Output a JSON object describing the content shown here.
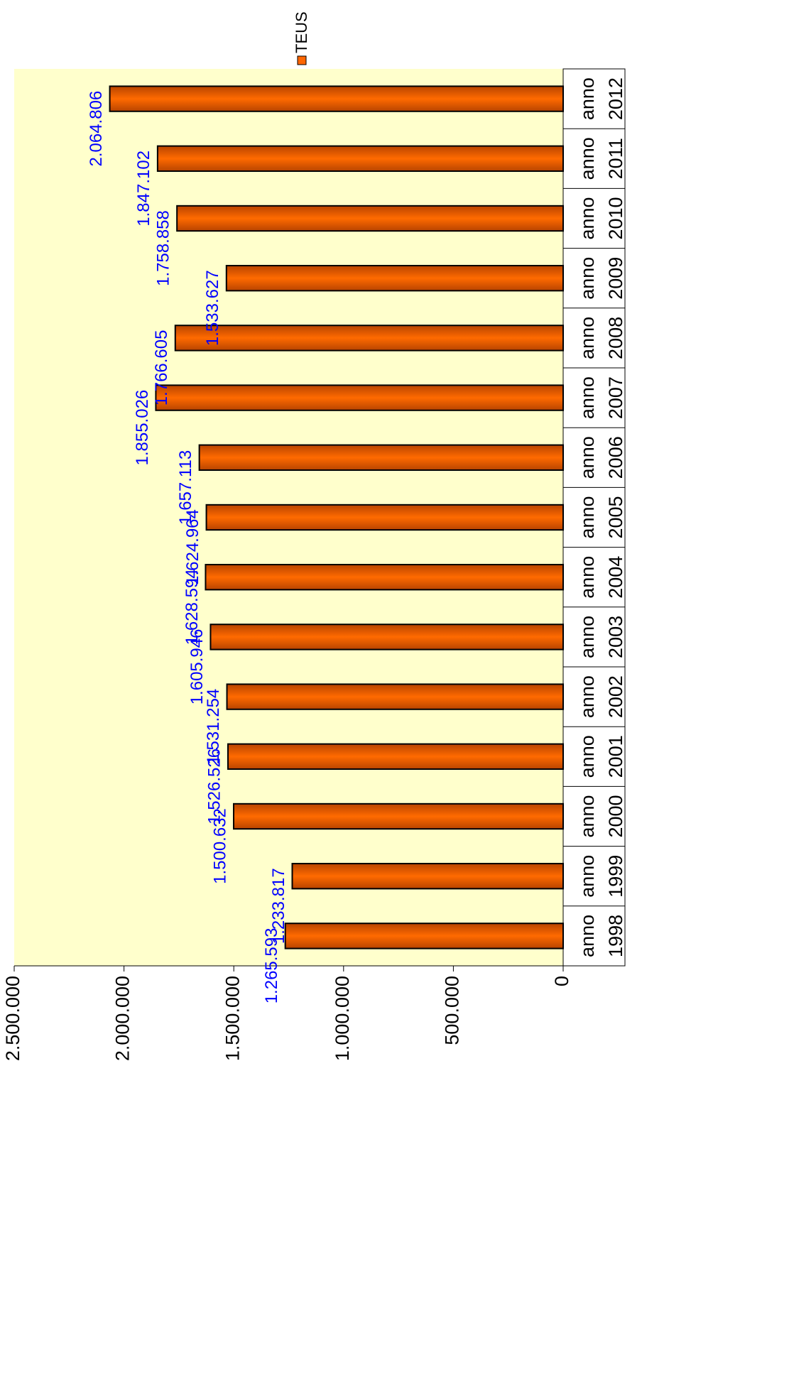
{
  "chart_data": {
    "type": "bar",
    "categories": [
      [
        "anno",
        "1998"
      ],
      [
        "anno",
        "1999"
      ],
      [
        "anno",
        "2000"
      ],
      [
        "anno",
        "2001"
      ],
      [
        "anno",
        "2002"
      ],
      [
        "anno",
        "2003"
      ],
      [
        "anno",
        "2004"
      ],
      [
        "anno",
        "2005"
      ],
      [
        "anno",
        "2006"
      ],
      [
        "anno",
        "2007"
      ],
      [
        "anno",
        "2008"
      ],
      [
        "anno",
        "2009"
      ],
      [
        "anno",
        "2010"
      ],
      [
        "anno",
        "2011"
      ],
      [
        "anno",
        "2012"
      ]
    ],
    "series": [
      {
        "name": "TEUS",
        "color": "#ff6600",
        "values": [
          1265593,
          1233817,
          1500632,
          1526526,
          1531254,
          1605946,
          1628594,
          1624964,
          1657113,
          1855026,
          1766605,
          1533627,
          1758858,
          1847102,
          2064806
        ],
        "value_labels": [
          "1.265.593",
          "1.233.817",
          "1.500.632",
          "1.526.526",
          "1.531.254",
          "1.605.946",
          "1.628.594",
          "1.624.964",
          "1.657.113",
          "1.855.026",
          "1.766.605",
          "1.533.627",
          "1.758.858",
          "1.847.102",
          "2.064.806"
        ]
      }
    ],
    "ylim": [
      0,
      2500000
    ],
    "yticks": [
      0,
      {
        "value": 500000,
        "label": "500.000"
      },
      {
        "value": 1000000,
        "label": "1.000.000"
      },
      {
        "value": 1500000,
        "label": "1.500.000"
      },
      {
        "value": 2000000,
        "label": "2.000.000"
      },
      {
        "value": 2500000,
        "label": "2.500.000"
      }
    ],
    "legend": "top-right"
  }
}
